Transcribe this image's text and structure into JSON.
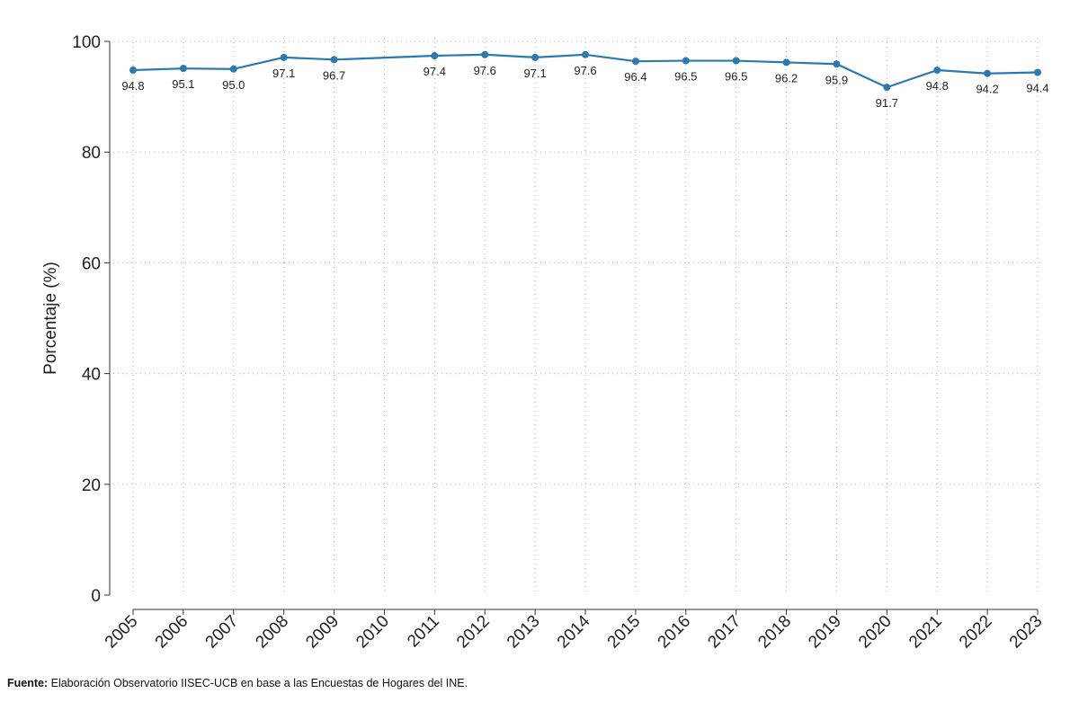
{
  "chart_data": {
    "type": "line",
    "x": [
      "2005",
      "2006",
      "2007",
      "2008",
      "2009",
      "2010",
      "2011",
      "2012",
      "2013",
      "2014",
      "2015",
      "2016",
      "2017",
      "2018",
      "2019",
      "2020",
      "2021",
      "2022",
      "2023"
    ],
    "values": [
      94.8,
      95.1,
      95.0,
      97.1,
      96.7,
      null,
      97.4,
      97.6,
      97.1,
      97.6,
      96.4,
      96.5,
      96.5,
      96.2,
      95.9,
      91.7,
      94.8,
      94.2,
      94.4
    ],
    "data_labels": [
      "94.8",
      "95.1",
      "95.0",
      "97.1",
      "96.7",
      "",
      "97.4",
      "97.6",
      "97.1",
      "97.6",
      "96.4",
      "96.5",
      "96.5",
      "96.2",
      "95.9",
      "91.7",
      "94.8",
      "94.2",
      "94.4"
    ],
    "ylabel": "Porcentaje (%)",
    "xlabel": "",
    "ylim": [
      0,
      100
    ],
    "yticks": [
      0,
      20,
      40,
      60,
      80,
      100
    ],
    "grid": true,
    "line_color": "#2a7ab0"
  },
  "footer": {
    "source_label": "Fuente:",
    "source_text": " Elaboración Observatorio IISEC-UCB en base a las Encuestas de Hogares del INE."
  }
}
